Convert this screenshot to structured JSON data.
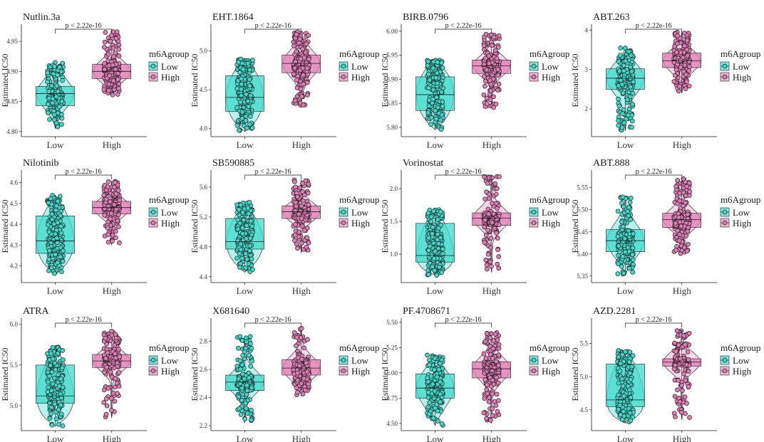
{
  "figure": {
    "ylabel": "Estimated IC50",
    "groups": [
      "Low",
      "High"
    ],
    "legend_title": "m6Agroup",
    "legend_labels": [
      "Low",
      "High"
    ],
    "significance": "p < 2.22e-16",
    "colors": {
      "low_fill": "#3fd9cc",
      "low_violin": "#7ee6dc",
      "high_fill": "#e07bb5",
      "high_violin": "#f0b8d6",
      "outline": "#1a1a1a"
    }
  },
  "chart_data": [
    {
      "type": "box-violin",
      "title": "Nutlin.3a",
      "xlabel": "",
      "ylabel": "Estimated IC50",
      "ylim": [
        4.795,
        4.975
      ],
      "yticks": [
        4.8,
        4.85,
        4.9,
        4.95
      ],
      "ytick_labels": [
        "4.80",
        "4.85",
        "4.90",
        "4.95"
      ],
      "categories": [
        "Low",
        "High"
      ],
      "low": {
        "min": 4.805,
        "q1": 4.843,
        "median": 4.863,
        "q3": 4.875,
        "max": 4.915
      },
      "high": {
        "min": 4.86,
        "q1": 4.888,
        "median": 4.9,
        "q3": 4.912,
        "max": 4.968
      }
    },
    {
      "type": "box-violin",
      "title": "EHT.1864",
      "xlabel": "",
      "ylabel": "Estimated IC50",
      "ylim": [
        3.92,
        5.32
      ],
      "yticks": [
        4.0,
        4.5,
        5.0
      ],
      "ytick_labels": [
        "4.0",
        "4.5",
        "5.0"
      ],
      "categories": [
        "Low",
        "High"
      ],
      "low": {
        "min": 3.96,
        "q1": 4.22,
        "median": 4.4,
        "q3": 4.68,
        "max": 4.9
      },
      "high": {
        "min": 4.28,
        "q1": 4.72,
        "median": 4.84,
        "q3": 4.95,
        "max": 5.25
      }
    },
    {
      "type": "box-violin",
      "title": "BIRB.0796",
      "xlabel": "",
      "ylabel": "Estimated IC50",
      "ylim": [
        5.785,
        6.01
      ],
      "yticks": [
        5.8,
        5.85,
        5.9,
        5.95,
        6.0
      ],
      "ytick_labels": [
        "5.80",
        "5.85",
        "5.90",
        "5.95",
        "6.00"
      ],
      "categories": [
        "Low",
        "High"
      ],
      "low": {
        "min": 5.795,
        "q1": 5.835,
        "median": 5.868,
        "q3": 5.905,
        "max": 5.94
      },
      "high": {
        "min": 5.84,
        "q1": 5.912,
        "median": 5.928,
        "q3": 5.94,
        "max": 5.995
      }
    },
    {
      "type": "box-violin",
      "title": "ABT.263",
      "xlabel": "",
      "ylabel": "Estimated IC50",
      "ylim": [
        1.35,
        4.1
      ],
      "yticks": [
        2,
        3,
        4
      ],
      "ytick_labels": [
        "2",
        "3",
        "4"
      ],
      "categories": [
        "Low",
        "High"
      ],
      "low": {
        "min": 1.45,
        "q1": 2.5,
        "median": 2.78,
        "q3": 3.02,
        "max": 3.55
      },
      "high": {
        "min": 2.4,
        "q1": 3.05,
        "median": 3.22,
        "q3": 3.42,
        "max": 3.95
      }
    },
    {
      "type": "box-violin",
      "title": "Nilotinib",
      "xlabel": "",
      "ylabel": "Estimated IC50",
      "ylim": [
        4.13,
        4.65
      ],
      "yticks": [
        4.2,
        4.3,
        4.4,
        4.5,
        4.6
      ],
      "ytick_labels": [
        "4.2",
        "4.3",
        "4.4",
        "4.5",
        "4.6"
      ],
      "categories": [
        "Low",
        "High"
      ],
      "low": {
        "min": 4.16,
        "q1": 4.26,
        "median": 4.32,
        "q3": 4.44,
        "max": 4.54
      },
      "high": {
        "min": 4.3,
        "q1": 4.45,
        "median": 4.48,
        "q3": 4.51,
        "max": 4.61
      }
    },
    {
      "type": "box-violin",
      "title": "SB590885",
      "xlabel": "",
      "ylabel": "Estimated IC50",
      "ylim": [
        4.35,
        5.8
      ],
      "yticks": [
        4.4,
        4.8,
        5.2,
        5.6
      ],
      "ytick_labels": [
        "4.4",
        "4.8",
        "5.2",
        "5.6"
      ],
      "categories": [
        "Low",
        "High"
      ],
      "low": {
        "min": 4.46,
        "q1": 4.77,
        "median": 4.87,
        "q3": 5.18,
        "max": 5.4
      },
      "high": {
        "min": 4.72,
        "q1": 5.18,
        "median": 5.27,
        "q3": 5.35,
        "max": 5.7
      }
    },
    {
      "type": "box-violin",
      "title": "Vorinostat",
      "xlabel": "",
      "ylabel": "Estimated IC50",
      "ylim": [
        0.6,
        2.25
      ],
      "yticks": [
        1.0,
        1.5,
        2.0
      ],
      "ytick_labels": [
        "1.0",
        "1.5",
        "2.0"
      ],
      "categories": [
        "Low",
        "High"
      ],
      "low": {
        "min": 0.68,
        "q1": 0.88,
        "median": 0.98,
        "q3": 1.47,
        "max": 1.68
      },
      "high": {
        "min": 0.72,
        "q1": 1.44,
        "median": 1.55,
        "q3": 1.63,
        "max": 2.2
      }
    },
    {
      "type": "box-violin",
      "title": "ABT.888",
      "xlabel": "",
      "ylabel": "Estimated IC50",
      "ylim": [
        5.34,
        5.585
      ],
      "yticks": [
        5.35,
        5.4,
        5.45,
        5.5,
        5.55
      ],
      "ytick_labels": [
        "5.35",
        "5.40",
        "5.45",
        "5.50",
        "5.55"
      ],
      "categories": [
        "Low",
        "High"
      ],
      "low": {
        "min": 5.352,
        "q1": 5.405,
        "median": 5.43,
        "q3": 5.455,
        "max": 5.53
      },
      "high": {
        "min": 5.4,
        "q1": 5.46,
        "median": 5.478,
        "q3": 5.492,
        "max": 5.57
      }
    },
    {
      "type": "box-violin",
      "title": "ATRA",
      "xlabel": "",
      "ylabel": "Estimated IC50",
      "ylim": [
        4.72,
        6.05
      ],
      "yticks": [
        5.0,
        5.5,
        6.0
      ],
      "ytick_labels": [
        "5.0",
        "5.5",
        "6.0"
      ],
      "categories": [
        "Low",
        "High"
      ],
      "low": {
        "min": 4.75,
        "q1": 5.03,
        "median": 5.12,
        "q3": 5.5,
        "max": 5.72
      },
      "high": {
        "min": 4.85,
        "q1": 5.47,
        "median": 5.55,
        "q3": 5.63,
        "max": 5.92
      }
    },
    {
      "type": "box-violin",
      "title": "X681640",
      "xlabel": "",
      "ylabel": "Estimated IC50",
      "ylim": [
        2.18,
        2.95
      ],
      "yticks": [
        2.2,
        2.4,
        2.6,
        2.8
      ],
      "ytick_labels": [
        "2.2",
        "2.4",
        "2.6",
        "2.8"
      ],
      "categories": [
        "Low",
        "High"
      ],
      "low": {
        "min": 2.22,
        "q1": 2.45,
        "median": 2.51,
        "q3": 2.56,
        "max": 2.84
      },
      "high": {
        "min": 2.41,
        "q1": 2.56,
        "median": 2.61,
        "q3": 2.67,
        "max": 2.9
      }
    },
    {
      "type": "box-violin",
      "title": "PF.4708671",
      "xlabel": "",
      "ylabel": "Estimated IC50",
      "ylim": [
        4.45,
        5.52
      ],
      "yticks": [
        4.5,
        4.75,
        5.0,
        5.25,
        5.5
      ],
      "ytick_labels": [
        "4.50",
        "4.75",
        "5.00",
        "5.25",
        "5.50"
      ],
      "categories": [
        "Low",
        "High"
      ],
      "low": {
        "min": 4.48,
        "q1": 4.75,
        "median": 4.85,
        "q3": 4.99,
        "max": 5.18
      },
      "high": {
        "min": 4.5,
        "q1": 4.95,
        "median": 5.04,
        "q3": 5.11,
        "max": 5.4
      }
    },
    {
      "type": "box-violin",
      "title": "AZD.2281",
      "xlabel": "",
      "ylabel": "Estimated IC50",
      "ylim": [
        4.22,
        5.85
      ],
      "yticks": [
        4.5,
        5.0,
        5.5
      ],
      "ytick_labels": [
        "4.5",
        "5.0",
        "5.5"
      ],
      "categories": [
        "Low",
        "High"
      ],
      "low": {
        "min": 4.3,
        "q1": 4.55,
        "median": 4.65,
        "q3": 5.19,
        "max": 5.4
      },
      "high": {
        "min": 4.35,
        "q1": 5.16,
        "median": 5.22,
        "q3": 5.27,
        "max": 5.7
      }
    }
  ]
}
